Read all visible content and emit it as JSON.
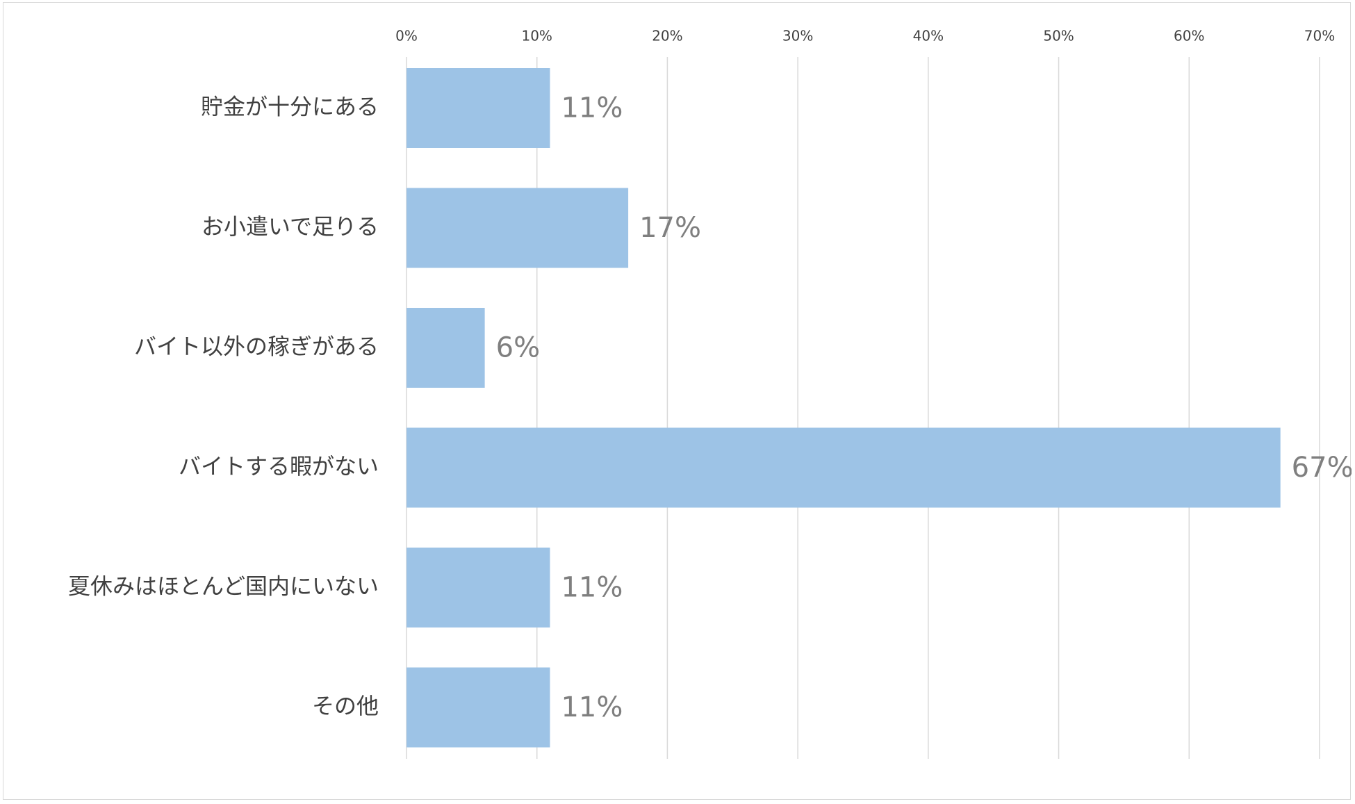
{
  "chart_data": {
    "type": "bar",
    "orientation": "horizontal",
    "title": "",
    "xlabel": "",
    "ylabel": "",
    "categories": [
      "貯金が十分にある",
      "お小遣いで足りる",
      "バイト以外の稼ぎがある",
      "バイトする暇がない",
      "夏休みはほとんど国内にいない",
      "その他"
    ],
    "values": [
      11,
      17,
      6,
      67,
      11,
      11
    ],
    "data_labels": [
      "11%",
      "17%",
      "6%",
      "67%",
      "11%",
      "11%"
    ],
    "xlim": [
      0,
      70
    ],
    "ticks": [
      0,
      10,
      20,
      30,
      40,
      50,
      60,
      70
    ],
    "tick_labels": [
      "0%",
      "10%",
      "20%",
      "30%",
      "40%",
      "50%",
      "60%",
      "70%"
    ],
    "axis_position": "top",
    "grid": true,
    "legend": "none",
    "bar_color": "#9dc3e6",
    "grid_color": "#d9d9d9",
    "label_color": "#404040",
    "data_label_color": "#7f7f7f"
  }
}
